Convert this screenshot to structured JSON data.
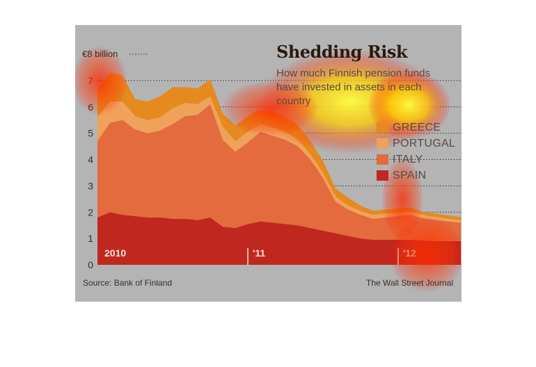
{
  "header": {
    "title": "Shedding Risk",
    "subtitle": "How much Finnish pension funds have invested in assets in each country"
  },
  "footer": {
    "source": "Source: Bank of Finland",
    "credit": "The Wall Street Journal"
  },
  "chart_data": {
    "type": "area",
    "stacked": true,
    "title": "Shedding Risk",
    "subtitle": "How much Finnish pension funds have invested in assets in each country",
    "y_unit_label": "€8 billion",
    "ylim": [
      0,
      8
    ],
    "y_ticks": [
      "0",
      "1",
      "2",
      "3",
      "4",
      "5",
      "6",
      "7"
    ],
    "x_tick_labels": [
      "2010",
      "'11",
      "'12"
    ],
    "x_tick_positions": [
      0,
      12,
      24
    ],
    "grid": "horizontal dotted",
    "legend_placement": "right",
    "x": [
      0,
      1,
      2,
      3,
      4,
      5,
      6,
      7,
      8,
      9,
      10,
      11,
      12,
      13,
      14,
      15,
      16,
      17,
      18,
      19,
      20,
      21,
      22,
      23,
      24,
      25,
      26,
      27,
      28,
      29
    ],
    "series": [
      {
        "name": "SPAIN",
        "color": "#c0281f",
        "values": [
          1.8,
          2.0,
          1.9,
          1.85,
          1.8,
          1.8,
          1.75,
          1.75,
          1.7,
          1.8,
          1.45,
          1.4,
          1.55,
          1.65,
          1.6,
          1.55,
          1.5,
          1.4,
          1.3,
          1.2,
          1.1,
          1.0,
          0.95,
          0.95,
          0.95,
          0.95,
          0.92,
          0.9,
          0.9,
          0.9
        ]
      },
      {
        "name": "ITALY",
        "color": "#e36b3d",
        "values": [
          2.9,
          3.4,
          3.6,
          3.3,
          3.2,
          3.3,
          3.6,
          3.9,
          4.0,
          4.3,
          3.3,
          2.9,
          3.1,
          3.4,
          3.3,
          3.2,
          3.0,
          2.6,
          2.0,
          1.2,
          1.0,
          0.9,
          0.8,
          0.85,
          0.9,
          0.95,
          0.85,
          0.8,
          0.75,
          0.7
        ]
      },
      {
        "name": "PORTUGAL",
        "color": "#f0a25a",
        "values": [
          0.9,
          0.8,
          0.7,
          0.5,
          0.5,
          0.5,
          0.6,
          0.5,
          0.4,
          0.3,
          0.5,
          0.4,
          0.4,
          0.3,
          0.3,
          0.3,
          0.25,
          0.2,
          0.2,
          0.2,
          0.15,
          0.15,
          0.15,
          0.15,
          0.15,
          0.12,
          0.12,
          0.12,
          0.1,
          0.1
        ]
      },
      {
        "name": "GREECE",
        "color": "#e58a1e",
        "values": [
          1.1,
          1.1,
          1.0,
          0.65,
          0.7,
          0.8,
          0.8,
          0.6,
          0.6,
          0.65,
          0.5,
          0.6,
          0.6,
          0.55,
          0.6,
          0.6,
          0.55,
          0.5,
          0.45,
          0.3,
          0.3,
          0.2,
          0.15,
          0.15,
          0.15,
          0.15,
          0.12,
          0.12,
          0.12,
          0.12
        ]
      }
    ]
  }
}
